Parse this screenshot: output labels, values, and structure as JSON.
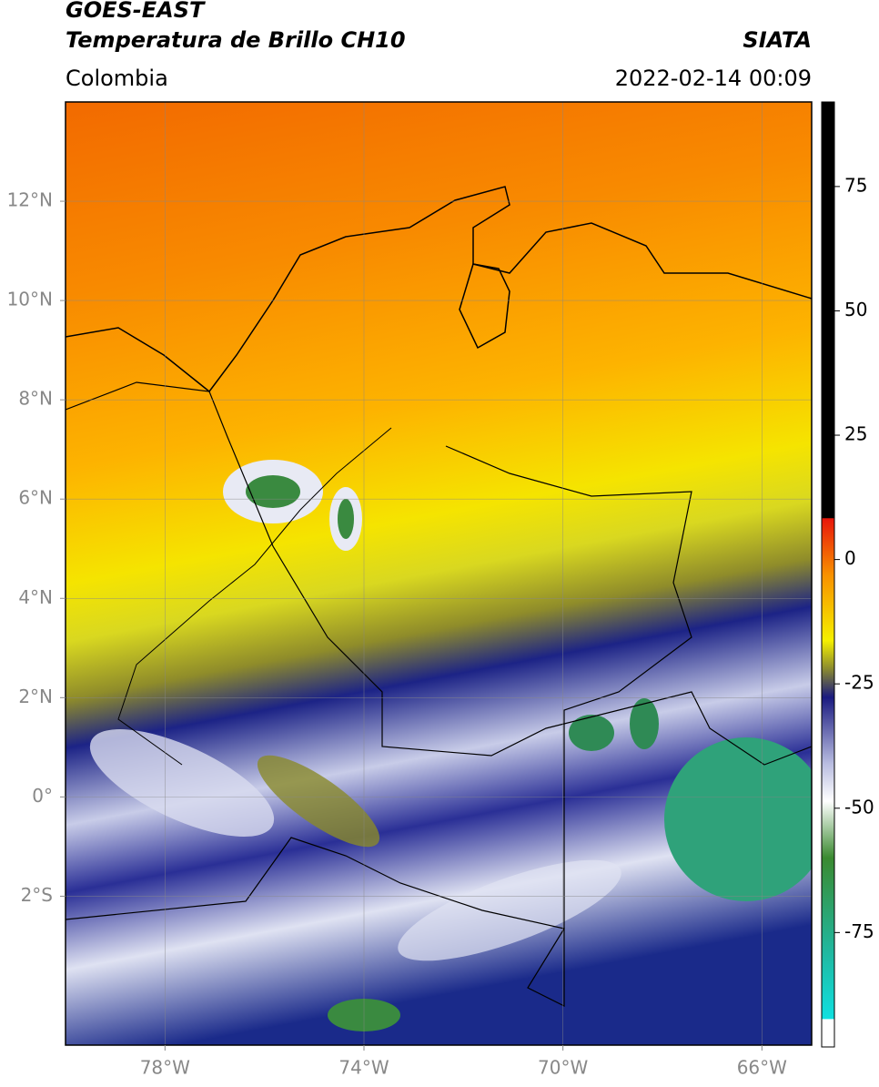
{
  "header": {
    "title": "GOES-EAST",
    "subtitle": "Temperatura de Brillo CH10",
    "region": "Colombia",
    "source": "SIATA",
    "timestamp": "2022-02-14 00:09"
  },
  "map": {
    "lonlim": [
      -80,
      -65
    ],
    "latlim": [
      -5,
      14
    ],
    "grid": true,
    "xticks": [
      {
        "value": -78,
        "label": "78°W"
      },
      {
        "value": -74,
        "label": "74°W"
      },
      {
        "value": -70,
        "label": "70°W"
      },
      {
        "value": -66,
        "label": "66°W"
      }
    ],
    "yticks": [
      {
        "value": 12,
        "label": "12°N"
      },
      {
        "value": 10,
        "label": "10°N"
      },
      {
        "value": 8,
        "label": "8°N"
      },
      {
        "value": 6,
        "label": "6°N"
      },
      {
        "value": 4,
        "label": "4°N"
      },
      {
        "value": 2,
        "label": "2°N"
      },
      {
        "value": 0,
        "label": "0°"
      },
      {
        "value": -2,
        "label": "2°S"
      }
    ]
  },
  "colorbar": {
    "lim": [
      -98,
      92
    ],
    "ticks": [
      75,
      50,
      25,
      0,
      -25,
      -50,
      -75
    ]
  }
}
